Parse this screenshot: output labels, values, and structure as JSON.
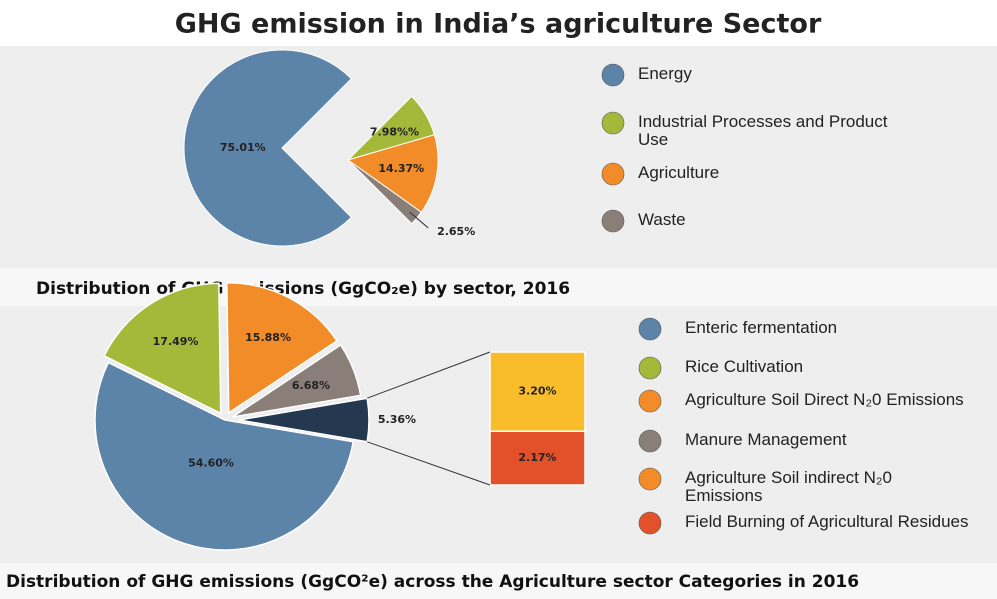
{
  "chart_data": [
    {
      "type": "pie",
      "title": "GHG emission in India’s agriculture Sector",
      "caption": "Distribution of GHG emissions (GgCO₂e) by sector, 2016",
      "categories": [
        "Energy",
        "Industrial Processes and Product Use",
        "Agriculture",
        "Waste"
      ],
      "values": [
        75.01,
        7.98,
        14.37,
        2.65
      ],
      "value_labels": [
        "75.01%",
        "7.98%%",
        "14.37%",
        "2.65%"
      ],
      "colors": [
        "#5b84a8",
        "#a4b83a",
        "#f28c28",
        "#8a7f78"
      ]
    },
    {
      "type": "bar-of-pie",
      "caption": "Distribution of GHG emissions (GgCO²e) across the Agriculture sector Categories in 2016",
      "values": [
        54.6,
        17.49,
        15.88,
        6.68,
        5.36
      ],
      "value_labels": [
        "54.60%",
        "17.49%",
        "15.88%",
        "6.68%",
        "5.36%"
      ],
      "colors": [
        "#5b84a8",
        "#a4b83a",
        "#f28c28",
        "#8a7f78",
        "#24394f"
      ],
      "bar": {
        "values": [
          3.2,
          2.17
        ],
        "value_labels": [
          "3.20%",
          "2.17%"
        ],
        "colors": [
          "#f9bd2b",
          "#e2512a"
        ]
      },
      "legend": [
        {
          "name": "Enteric fermentation",
          "color": "#5b84a8"
        },
        {
          "name": "Rice Cultivation",
          "color": "#a4b83a"
        },
        {
          "name": "Agriculture Soil Direct N₂0 Emissions",
          "color": "#f28c28"
        },
        {
          "name": "Manure Management",
          "color": "#8a7f78"
        },
        {
          "name": "Agriculture Soil indirect N₂0 Emissions",
          "color": "#f28c28"
        },
        {
          "name": "Field Burning of Agricultural Residues",
          "color": "#e2512a"
        }
      ]
    }
  ]
}
